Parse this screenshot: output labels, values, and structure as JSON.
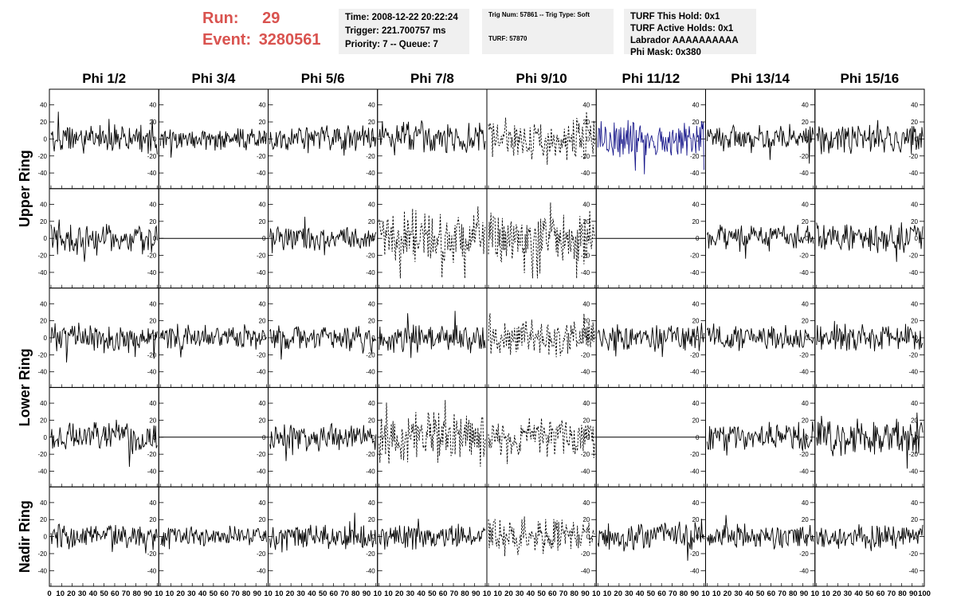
{
  "run_info": {
    "run_label": "Run:",
    "run_value": "29",
    "event_label": "Event:",
    "event_value": "3280561",
    "color": "#d9534f"
  },
  "info_boxes": {
    "time": [
      "Time: 2008-12-22 20:22:24",
      "Trigger: 221.700757 ms",
      "Priority: 7 -- Queue: 7"
    ],
    "trig": [
      "Trig Num: 57861 -- Trig Type: Soft",
      "TURF: 57870"
    ],
    "turf": [
      "TURF This Hold: 0x1",
      "TURF Active Holds: 0x1",
      "Labrador AAAAAAAAAA",
      "Phi Mask: 0x380"
    ]
  },
  "chart_data": {
    "type": "line",
    "columns": [
      "Phi 1/2",
      "Phi 3/4",
      "Phi 5/6",
      "Phi 7/8",
      "Phi 9/10",
      "Phi 11/12",
      "Phi 13/14",
      "Phi 15/16"
    ],
    "rings": [
      "Upper Ring",
      "Lower Ring",
      "Nadir Ring"
    ],
    "x_range": [
      0,
      100
    ],
    "y_range": [
      -50,
      50
    ],
    "y_ticks": [
      "40",
      "20",
      "0",
      "-20",
      "-40"
    ],
    "x_tick_labels": [
      "0",
      "10",
      "20",
      "30",
      "40",
      "50",
      "60",
      "70",
      "80",
      "90",
      "10",
      "10",
      "20",
      "30",
      "40",
      "50",
      "60",
      "70",
      "80",
      "90",
      "10",
      "10",
      "20",
      "30",
      "40",
      "50",
      "60",
      "70",
      "80",
      "90",
      "10",
      "10",
      "20",
      "30",
      "40",
      "50",
      "60",
      "70",
      "80",
      "90",
      "10",
      "10",
      "20",
      "30",
      "40",
      "50",
      "60",
      "70",
      "80",
      "90",
      "10",
      "10",
      "20",
      "30",
      "40",
      "50",
      "60",
      "70",
      "80",
      "90",
      "10",
      "10",
      "20",
      "30",
      "40",
      "50",
      "60",
      "70",
      "80",
      "90",
      "10",
      "10",
      "20",
      "30",
      "40",
      "50",
      "60",
      "70",
      "80",
      "90",
      "100"
    ],
    "panels": [
      [
        {
          "style": "solid",
          "amp": 14,
          "seed": 1
        },
        {
          "style": "solid",
          "amp": 11,
          "seed": 2
        },
        {
          "style": "solid",
          "amp": 13,
          "seed": 3
        },
        {
          "style": "solid",
          "amp": 15,
          "seed": 4
        },
        {
          "style": "dotted",
          "amp": 22,
          "seed": 5
        },
        {
          "style": "blue",
          "amp": 20,
          "seed": 6
        },
        {
          "style": "solid",
          "amp": 14,
          "seed": 7
        },
        {
          "style": "solid",
          "amp": 15,
          "seed": 8
        }
      ],
      [
        {
          "style": "solid",
          "amp": 16,
          "seed": 9
        },
        {
          "style": "flat",
          "amp": 0,
          "seed": 10
        },
        {
          "style": "solid",
          "amp": 12,
          "seed": 11
        },
        {
          "style": "dotted",
          "amp": 24,
          "seed": 12
        },
        {
          "style": "dotted",
          "amp": 25,
          "seed": 13
        },
        {
          "style": "flat",
          "amp": 0,
          "seed": 14
        },
        {
          "style": "solid",
          "amp": 13,
          "seed": 15
        },
        {
          "style": "solid",
          "amp": 15,
          "seed": 16
        }
      ],
      [
        {
          "style": "solid",
          "amp": 13,
          "seed": 17
        },
        {
          "style": "solid",
          "amp": 12,
          "seed": 18
        },
        {
          "style": "solid",
          "amp": 14,
          "seed": 19
        },
        {
          "style": "solid",
          "amp": 14,
          "seed": 20
        },
        {
          "style": "dotted",
          "amp": 18,
          "seed": 21
        },
        {
          "style": "solid",
          "amp": 13,
          "seed": 22
        },
        {
          "style": "solid",
          "amp": 13,
          "seed": 23
        },
        {
          "style": "solid",
          "amp": 13,
          "seed": 24
        }
      ],
      [
        {
          "style": "solid",
          "amp": 16,
          "seed": 25
        },
        {
          "style": "flat",
          "amp": 0,
          "seed": 26
        },
        {
          "style": "solid",
          "amp": 13,
          "seed": 27
        },
        {
          "style": "dotted",
          "amp": 24,
          "seed": 28
        },
        {
          "style": "dotted",
          "amp": 18,
          "seed": 29
        },
        {
          "style": "flat",
          "amp": 0,
          "seed": 30
        },
        {
          "style": "solid",
          "amp": 13,
          "seed": 31
        },
        {
          "style": "solid",
          "amp": 18,
          "seed": 32
        }
      ],
      [
        {
          "style": "solid",
          "amp": 12,
          "seed": 33
        },
        {
          "style": "solid",
          "amp": 10,
          "seed": 34
        },
        {
          "style": "solid",
          "amp": 12,
          "seed": 35
        },
        {
          "style": "solid",
          "amp": 12,
          "seed": 36
        },
        {
          "style": "dotted",
          "amp": 18,
          "seed": 37
        },
        {
          "style": "solid",
          "amp": 13,
          "seed": 38
        },
        {
          "style": "solid",
          "amp": 12,
          "seed": 39
        },
        {
          "style": "solid",
          "amp": 12,
          "seed": 40
        }
      ]
    ],
    "colors": {
      "trace": "#000000",
      "highlight": "#1a1a8c",
      "frame": "#000000"
    }
  }
}
